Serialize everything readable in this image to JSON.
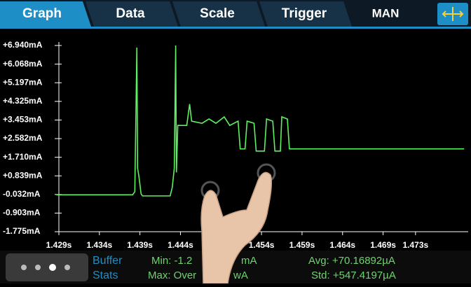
{
  "tabs": [
    "Graph",
    "Data",
    "Scale",
    "Trigger"
  ],
  "mode": "MAN",
  "stats": {
    "title": [
      "Buffer",
      "Stats"
    ],
    "min_label": "Min: -1.2",
    "min_unit": "mA",
    "max_label": "Max: Over",
    "max_unit": "wA",
    "avg": "Avg: +70.16892µA",
    "std": "Std: +547.4197µA"
  },
  "chart_data": {
    "type": "line",
    "x": [
      1.4287,
      1.4381,
      1.43837,
      1.43862,
      1.43871,
      1.43888,
      1.43914,
      1.43931,
      1.44273,
      1.44299,
      1.44324,
      1.44341,
      1.4435,
      1.44367,
      1.44478,
      1.44513,
      1.44538,
      1.44666,
      1.44752,
      1.44838,
      1.4494,
      1.45008,
      1.45111,
      1.45137,
      1.45197,
      1.45222,
      1.45308,
      1.45334,
      1.45436,
      1.45462,
      1.45539,
      1.45565,
      1.45633,
      1.4565,
      1.45719,
      1.45744,
      1.45907,
      1.479
    ],
    "series": [
      {
        "color": "#5ef05e",
        "values": [
          -0.05,
          -0.05,
          0.1,
          6.84,
          1.2,
          0.8,
          0.0,
          -0.1,
          -0.1,
          0.3,
          1.2,
          6.94,
          1.0,
          3.2,
          3.2,
          4.2,
          3.4,
          3.3,
          3.5,
          3.3,
          3.6,
          3.2,
          3.4,
          2.1,
          2.1,
          3.4,
          3.3,
          2.0,
          2.0,
          3.5,
          3.4,
          2.0,
          2.0,
          3.6,
          3.5,
          2.1,
          2.1,
          2.1
        ]
      }
    ],
    "xlim": [
      1.429,
      1.4795
    ],
    "ylim": [
      -1.775,
      6.94
    ],
    "xticks": [
      {
        "value": 1.429,
        "label": "1.429s"
      },
      {
        "value": 1.434,
        "label": "1.434s"
      },
      {
        "value": 1.439,
        "label": "1.439s"
      },
      {
        "value": 1.444,
        "label": "1.444s"
      },
      {
        "value": 1.454,
        "label": "1.454s"
      },
      {
        "value": 1.459,
        "label": "1.459s"
      },
      {
        "value": 1.464,
        "label": "1.464s"
      },
      {
        "value": 1.469,
        "label": "1.469s"
      },
      {
        "value": 1.473,
        "label": "1.473s"
      }
    ],
    "yticks": [
      {
        "value": 6.94,
        "label": "+6.940mA"
      },
      {
        "value": 6.068,
        "label": "+6.068mA"
      },
      {
        "value": 5.197,
        "label": "+5.197mA"
      },
      {
        "value": 4.325,
        "label": "+4.325mA"
      },
      {
        "value": 3.453,
        "label": "+3.453mA"
      },
      {
        "value": 2.582,
        "label": "+2.582mA"
      },
      {
        "value": 1.71,
        "label": "+1.710mA"
      },
      {
        "value": 0.839,
        "label": "+0.839mA"
      },
      {
        "value": -0.032,
        "label": "-0.032mA"
      },
      {
        "value": -0.903,
        "label": "-0.903mA"
      },
      {
        "value": -1.775,
        "label": "-1.775mA"
      }
    ]
  }
}
